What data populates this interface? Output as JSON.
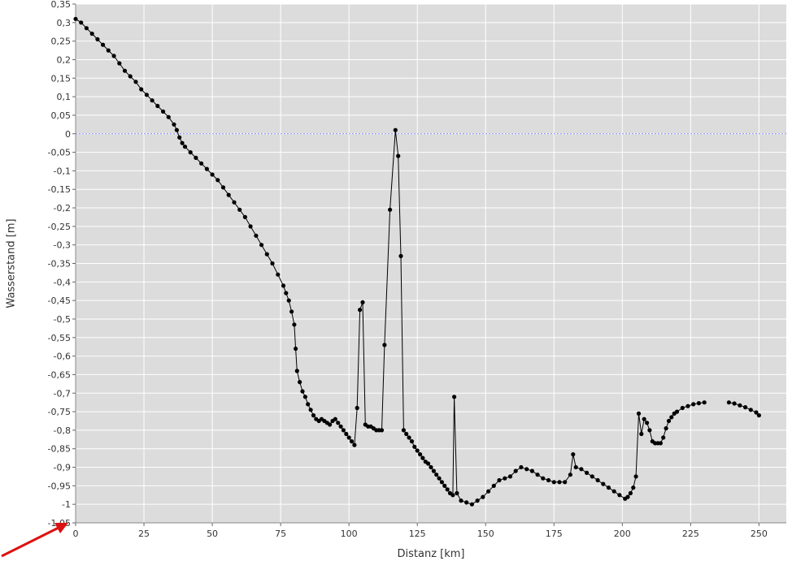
{
  "chart_data": {
    "type": "line",
    "xlabel": "Distanz [km]",
    "ylabel": "Wasserstand  [m]",
    "xlim": [
      0,
      260
    ],
    "ylim": [
      -1.05,
      0.35
    ],
    "x_ticks": [
      "0",
      "25",
      "50",
      "75",
      "100",
      "125",
      "150",
      "175",
      "200",
      "225",
      "250"
    ],
    "y_ticks": [
      "0,35",
      "0,3",
      "0,25",
      "0,2",
      "0,15",
      "0,1",
      "0,05",
      "0",
      "-0,05",
      "-0,1",
      "-0,15",
      "-0,2",
      "-0,25",
      "-0,3",
      "-0,35",
      "-0,4",
      "-0,45",
      "-0,5",
      "-0,55",
      "-0,6",
      "-0,65",
      "-0,7",
      "-0,75",
      "-0,8",
      "-0,85",
      "-0,9",
      "-0,95",
      "-1",
      "-1,05"
    ],
    "grid": true,
    "reference_line_y": 0,
    "series": [
      {
        "segments": [
          [
            [
              0,
              0.31
            ],
            [
              2,
              0.3
            ],
            [
              4,
              0.285
            ],
            [
              6,
              0.27
            ],
            [
              8,
              0.255
            ],
            [
              10,
              0.24
            ],
            [
              12,
              0.225
            ],
            [
              14,
              0.21
            ],
            [
              16,
              0.19
            ],
            [
              18,
              0.17
            ],
            [
              20,
              0.155
            ],
            [
              22,
              0.14
            ],
            [
              24,
              0.12
            ],
            [
              26,
              0.105
            ],
            [
              28,
              0.09
            ],
            [
              30,
              0.075
            ],
            [
              32,
              0.06
            ],
            [
              34,
              0.045
            ],
            [
              36,
              0.025
            ],
            [
              37,
              0.01
            ],
            [
              38,
              -0.01
            ],
            [
              39,
              -0.025
            ],
            [
              40,
              -0.035
            ],
            [
              42,
              -0.05
            ],
            [
              44,
              -0.065
            ],
            [
              46,
              -0.08
            ],
            [
              48,
              -0.095
            ],
            [
              50,
              -0.11
            ],
            [
              52,
              -0.125
            ],
            [
              54,
              -0.145
            ],
            [
              56,
              -0.165
            ],
            [
              58,
              -0.185
            ],
            [
              60,
              -0.205
            ],
            [
              62,
              -0.225
            ],
            [
              64,
              -0.25
            ],
            [
              66,
              -0.275
            ],
            [
              68,
              -0.3
            ],
            [
              70,
              -0.325
            ],
            [
              72,
              -0.35
            ],
            [
              74,
              -0.38
            ],
            [
              76,
              -0.41
            ],
            [
              77,
              -0.43
            ],
            [
              78,
              -0.45
            ],
            [
              79,
              -0.48
            ],
            [
              80,
              -0.515
            ],
            [
              80.5,
              -0.58
            ],
            [
              81,
              -0.64
            ],
            [
              82,
              -0.67
            ],
            [
              83,
              -0.695
            ],
            [
              84,
              -0.71
            ],
            [
              85,
              -0.73
            ],
            [
              86,
              -0.745
            ],
            [
              87,
              -0.76
            ],
            [
              88,
              -0.77
            ],
            [
              89,
              -0.775
            ],
            [
              90,
              -0.77
            ],
            [
              91,
              -0.775
            ],
            [
              92,
              -0.78
            ],
            [
              93,
              -0.785
            ],
            [
              94,
              -0.775
            ],
            [
              95,
              -0.77
            ],
            [
              96,
              -0.78
            ],
            [
              97,
              -0.79
            ],
            [
              98,
              -0.8
            ],
            [
              99,
              -0.81
            ],
            [
              100,
              -0.82
            ],
            [
              101,
              -0.83
            ],
            [
              102,
              -0.84
            ],
            [
              103,
              -0.74
            ],
            [
              104,
              -0.475
            ],
            [
              105,
              -0.455
            ],
            [
              106,
              -0.785
            ],
            [
              107,
              -0.79
            ],
            [
              108,
              -0.79
            ],
            [
              109,
              -0.795
            ],
            [
              110,
              -0.8
            ],
            [
              111,
              -0.8
            ],
            [
              112,
              -0.8
            ],
            [
              113,
              -0.57
            ],
            [
              115,
              -0.205
            ],
            [
              117,
              0.01
            ],
            [
              118,
              -0.06
            ],
            [
              119,
              -0.33
            ],
            [
              120,
              -0.8
            ],
            [
              121,
              -0.81
            ],
            [
              122,
              -0.82
            ],
            [
              123,
              -0.83
            ],
            [
              124,
              -0.845
            ],
            [
              125,
              -0.855
            ],
            [
              126,
              -0.865
            ],
            [
              127,
              -0.875
            ],
            [
              128,
              -0.885
            ],
            [
              129,
              -0.89
            ],
            [
              130,
              -0.9
            ],
            [
              131,
              -0.91
            ],
            [
              132,
              -0.92
            ],
            [
              133,
              -0.93
            ],
            [
              134,
              -0.94
            ],
            [
              135,
              -0.95
            ],
            [
              136,
              -0.96
            ],
            [
              137,
              -0.97
            ],
            [
              138,
              -0.975
            ],
            [
              138.5,
              -0.71
            ],
            [
              139.5,
              -0.97
            ],
            [
              141,
              -0.99
            ],
            [
              143,
              -0.995
            ],
            [
              145,
              -1.0
            ],
            [
              147,
              -0.99
            ],
            [
              149,
              -0.98
            ],
            [
              151,
              -0.965
            ],
            [
              153,
              -0.95
            ],
            [
              155,
              -0.935
            ],
            [
              157,
              -0.93
            ],
            [
              159,
              -0.925
            ],
            [
              161,
              -0.91
            ],
            [
              163,
              -0.9
            ],
            [
              165,
              -0.905
            ],
            [
              167,
              -0.91
            ],
            [
              169,
              -0.92
            ],
            [
              171,
              -0.93
            ],
            [
              173,
              -0.935
            ],
            [
              175,
              -0.94
            ],
            [
              177,
              -0.94
            ],
            [
              179,
              -0.94
            ],
            [
              181,
              -0.92
            ],
            [
              182,
              -0.865
            ],
            [
              183,
              -0.9
            ],
            [
              185,
              -0.905
            ],
            [
              187,
              -0.915
            ],
            [
              189,
              -0.925
            ],
            [
              191,
              -0.935
            ],
            [
              193,
              -0.945
            ],
            [
              195,
              -0.955
            ],
            [
              197,
              -0.965
            ],
            [
              199,
              -0.975
            ],
            [
              201,
              -0.985
            ],
            [
              202,
              -0.98
            ],
            [
              203,
              -0.97
            ],
            [
              204,
              -0.955
            ],
            [
              205,
              -0.925
            ],
            [
              206,
              -0.755
            ],
            [
              207,
              -0.81
            ],
            [
              208,
              -0.77
            ],
            [
              209,
              -0.78
            ],
            [
              210,
              -0.8
            ],
            [
              211,
              -0.83
            ],
            [
              212,
              -0.835
            ],
            [
              213,
              -0.835
            ],
            [
              214,
              -0.835
            ],
            [
              215,
              -0.82
            ],
            [
              216,
              -0.795
            ],
            [
              217,
              -0.775
            ],
            [
              218,
              -0.765
            ],
            [
              219,
              -0.755
            ],
            [
              220,
              -0.75
            ],
            [
              222,
              -0.74
            ],
            [
              224,
              -0.735
            ],
            [
              226,
              -0.73
            ],
            [
              228,
              -0.727
            ],
            [
              230,
              -0.725
            ]
          ],
          [
            [
              239,
              -0.725
            ],
            [
              241,
              -0.728
            ],
            [
              243,
              -0.733
            ],
            [
              245,
              -0.738
            ],
            [
              247,
              -0.745
            ],
            [
              249,
              -0.752
            ],
            [
              250,
              -0.76
            ]
          ]
        ]
      }
    ],
    "colors": {
      "plot_background": "#dcdcdc",
      "grid": "#ffffff",
      "series": "#000000",
      "zero_line": "#8888ff",
      "arrow": "#dd1111"
    }
  }
}
